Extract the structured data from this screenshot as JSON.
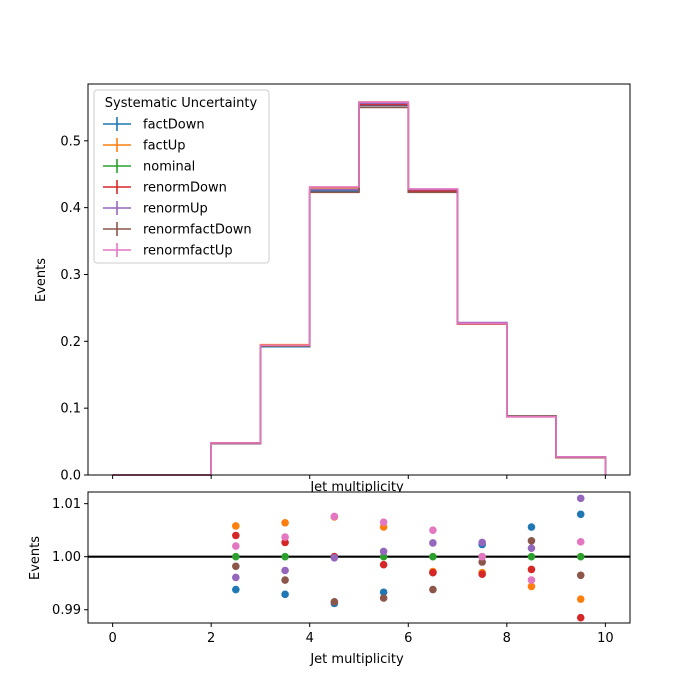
{
  "chart_data": [
    {
      "type": "step",
      "ylabel": "Events",
      "xlabel": "Jet multiplicity",
      "xlim": [
        -0.5,
        10.5
      ],
      "ylim": [
        0,
        0.585
      ],
      "yticks": [
        0.0,
        0.1,
        0.2,
        0.3,
        0.4,
        0.5
      ],
      "ytick_labels": [
        "0.0",
        "0.1",
        "0.2",
        "0.3",
        "0.4",
        "0.5"
      ],
      "bin_edges": [
        0,
        2,
        3,
        4,
        5,
        6,
        7,
        8,
        9,
        10
      ],
      "legend": {
        "title": "Systematic Uncertainty",
        "placement": "upper-left"
      },
      "series": [
        {
          "name": "factDown",
          "color": "#1f77b4",
          "values": [
            0,
            0.047,
            0.192,
            0.425,
            0.553,
            0.425,
            0.227,
            0.088,
            0.027
          ]
        },
        {
          "name": "factUp",
          "color": "#ff7f0e",
          "values": [
            0,
            0.048,
            0.195,
            0.43,
            0.558,
            0.427,
            0.227,
            0.087,
            0.026
          ]
        },
        {
          "name": "nominal",
          "color": "#2ca02c",
          "values": [
            0,
            0.048,
            0.193,
            0.427,
            0.555,
            0.426,
            0.227,
            0.088,
            0.027
          ]
        },
        {
          "name": "renormDown",
          "color": "#d62728",
          "values": [
            0,
            0.048,
            0.194,
            0.427,
            0.554,
            0.425,
            0.226,
            0.088,
            0.026
          ]
        },
        {
          "name": "renormUp",
          "color": "#9467bd",
          "values": [
            0,
            0.047,
            0.193,
            0.427,
            0.556,
            0.427,
            0.228,
            0.088,
            0.027
          ]
        },
        {
          "name": "renormfactDown",
          "color": "#8c564b",
          "values": [
            0,
            0.047,
            0.193,
            0.423,
            0.55,
            0.423,
            0.227,
            0.088,
            0.026
          ]
        },
        {
          "name": "renormfactUp",
          "color": "#e377c2",
          "values": [
            0,
            0.048,
            0.194,
            0.431,
            0.558,
            0.428,
            0.227,
            0.087,
            0.027
          ]
        }
      ]
    },
    {
      "type": "scatter",
      "ylabel": "Events",
      "xlabel": "Jet multiplicity",
      "xlim": [
        -0.5,
        10.5
      ],
      "ylim": [
        0.9875,
        1.0122
      ],
      "xticks": [
        0,
        2,
        4,
        6,
        8,
        10
      ],
      "xtick_labels": [
        "0",
        "2",
        "4",
        "6",
        "8",
        "10"
      ],
      "yticks": [
        0.99,
        1.0,
        1.01
      ],
      "ytick_labels": [
        "0.99",
        "1.00",
        "1.01"
      ],
      "reference_line": 1.0,
      "x": [
        2.5,
        3.5,
        4.5,
        5.5,
        6.5,
        7.5,
        8.5,
        9.5
      ],
      "series": [
        {
          "name": "factDown",
          "color": "#1f77b4",
          "values": [
            0.9938,
            0.9929,
            0.9912,
            0.9933,
            0.997,
            1.0023,
            1.0056,
            1.008
          ]
        },
        {
          "name": "factUp",
          "color": "#ff7f0e",
          "values": [
            1.0058,
            1.0064,
            1.0075,
            1.0056,
            0.9972,
            0.997,
            0.9944,
            0.992
          ]
        },
        {
          "name": "nominal",
          "color": "#2ca02c",
          "values": [
            1.0,
            1.0,
            1.0,
            1.0,
            1.0,
            1.0,
            1.0,
            1.0
          ]
        },
        {
          "name": "renormDown",
          "color": "#d62728",
          "values": [
            1.004,
            1.0027,
            1.0,
            0.9985,
            0.997,
            0.9967,
            0.9976,
            0.9885
          ]
        },
        {
          "name": "renormUp",
          "color": "#9467bd",
          "values": [
            0.9961,
            0.9974,
            0.9998,
            1.001,
            1.0026,
            1.0027,
            1.0016,
            1.011
          ]
        },
        {
          "name": "renormfactDown",
          "color": "#8c564b",
          "values": [
            0.9982,
            0.9956,
            0.9915,
            0.9922,
            0.9938,
            0.999,
            1.003,
            0.9965
          ]
        },
        {
          "name": "renormfactUp",
          "color": "#e377c2",
          "values": [
            1.002,
            1.0037,
            1.0076,
            1.0065,
            1.005,
            1.0,
            0.9956,
            1.0028
          ]
        }
      ]
    }
  ]
}
